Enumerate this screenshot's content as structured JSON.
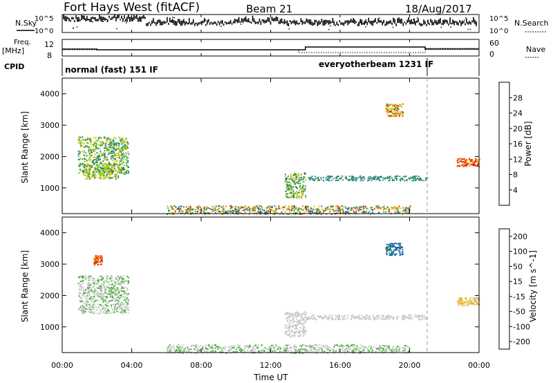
{
  "header": {
    "station": "Fort Hays West (fitACF)",
    "beam": "Beam 21",
    "date": "18/Aug/2017"
  },
  "strip_labels": {
    "nsky": "N.Sky",
    "nsearch": "N.Search",
    "freq": "Freq.",
    "freq_unit": "[MHz]",
    "nave": "Nave",
    "cpid": "CPID"
  },
  "strip_ticks": {
    "noise_left_top": "10^5",
    "noise_left_bottom": "10^0",
    "noise_right_top": "10^5",
    "noise_right_bottom": "10^0",
    "freq_top": "12",
    "freq_bottom": "8",
    "nave_top": "60",
    "nave_bottom": "0"
  },
  "cpid": {
    "segment1": "normal (fast) 151 IF",
    "segment2": "everyotherbeam 1231 IF"
  },
  "chart_data": [
    {
      "type": "heatmap",
      "name": "power",
      "ylabel": "Slant Range [km]",
      "colorbar_label": "Power [dB]",
      "colorbar_ticks": [
        "4",
        "8",
        "12",
        "16",
        "20",
        "24",
        "28"
      ],
      "yticks": [
        "1000",
        "2000",
        "3000",
        "4000"
      ],
      "ylim": [
        180,
        4500
      ],
      "scatter_bands": [
        {
          "x": [
            0.9,
            3.8
          ],
          "y": [
            1450,
            2650
          ],
          "level": [
            8,
            20
          ]
        },
        {
          "x": [
            1.2,
            3.2
          ],
          "y": [
            1300,
            1800
          ],
          "level": [
            12,
            20
          ]
        },
        {
          "x": [
            12.8,
            14.0
          ],
          "y": [
            700,
            1500
          ],
          "level": [
            8,
            20
          ]
        },
        {
          "x": [
            14.0,
            21.0
          ],
          "y": [
            1250,
            1400
          ],
          "level": [
            8,
            12
          ]
        },
        {
          "x": [
            22.7,
            24.0
          ],
          "y": [
            1700,
            1950
          ],
          "level": [
            20,
            30
          ]
        },
        {
          "x": [
            18.6,
            19.6
          ],
          "y": [
            3300,
            3700
          ],
          "level": [
            12,
            28
          ]
        },
        {
          "x": [
            6.0,
            20.0
          ],
          "y": [
            180,
            450
          ],
          "level": [
            4,
            28
          ]
        }
      ]
    },
    {
      "type": "heatmap",
      "name": "velocity",
      "ylabel": "Slant Range [km]",
      "xlabel": "Time UT",
      "colorbar_label": "Velocity [m s^-1]",
      "colorbar_ticks": [
        "200",
        "100",
        "50",
        "15",
        "-15",
        "-50",
        "-100",
        "-200"
      ],
      "yticks": [
        "1000",
        "2000",
        "3000",
        "4000"
      ],
      "ylim": [
        180,
        4500
      ],
      "xticks": [
        "00:00",
        "04:00",
        "08:00",
        "12:00",
        "16:00",
        "20:00",
        "00:00"
      ],
      "xlim": [
        0,
        24
      ],
      "scatter_bands": [
        {
          "x": [
            0.9,
            3.8
          ],
          "y": [
            1450,
            2650
          ],
          "level": [
            -50,
            15
          ]
        },
        {
          "x": [
            1.8,
            2.3
          ],
          "y": [
            3000,
            3300
          ],
          "level": [
            100,
            200
          ]
        },
        {
          "x": [
            12.8,
            14.0
          ],
          "y": [
            700,
            1500
          ],
          "level": [
            -15,
            15
          ]
        },
        {
          "x": [
            14.0,
            21.0
          ],
          "y": [
            1250,
            1400
          ],
          "level": [
            -15,
            15
          ]
        },
        {
          "x": [
            22.7,
            24.0
          ],
          "y": [
            1700,
            1950
          ],
          "level": [
            15,
            50
          ]
        },
        {
          "x": [
            18.6,
            19.6
          ],
          "y": [
            3300,
            3700
          ],
          "level": [
            -200,
            -100
          ]
        },
        {
          "x": [
            6.0,
            20.0
          ],
          "y": [
            180,
            450
          ],
          "level": [
            -50,
            15
          ]
        }
      ]
    }
  ],
  "colors": {
    "power_scale": [
      "#0000d0",
      "#2050c8",
      "#3a8a8a",
      "#1c8a50",
      "#90d030",
      "#f0c000",
      "#f07800",
      "#e03000",
      "#e00000"
    ],
    "velocity_scale": [
      "#1030c0",
      "#2060c0",
      "#208060",
      "#40b030",
      "#c8c8c8",
      "#f0b000",
      "#f08000",
      "#e84000",
      "#e00000"
    ]
  }
}
